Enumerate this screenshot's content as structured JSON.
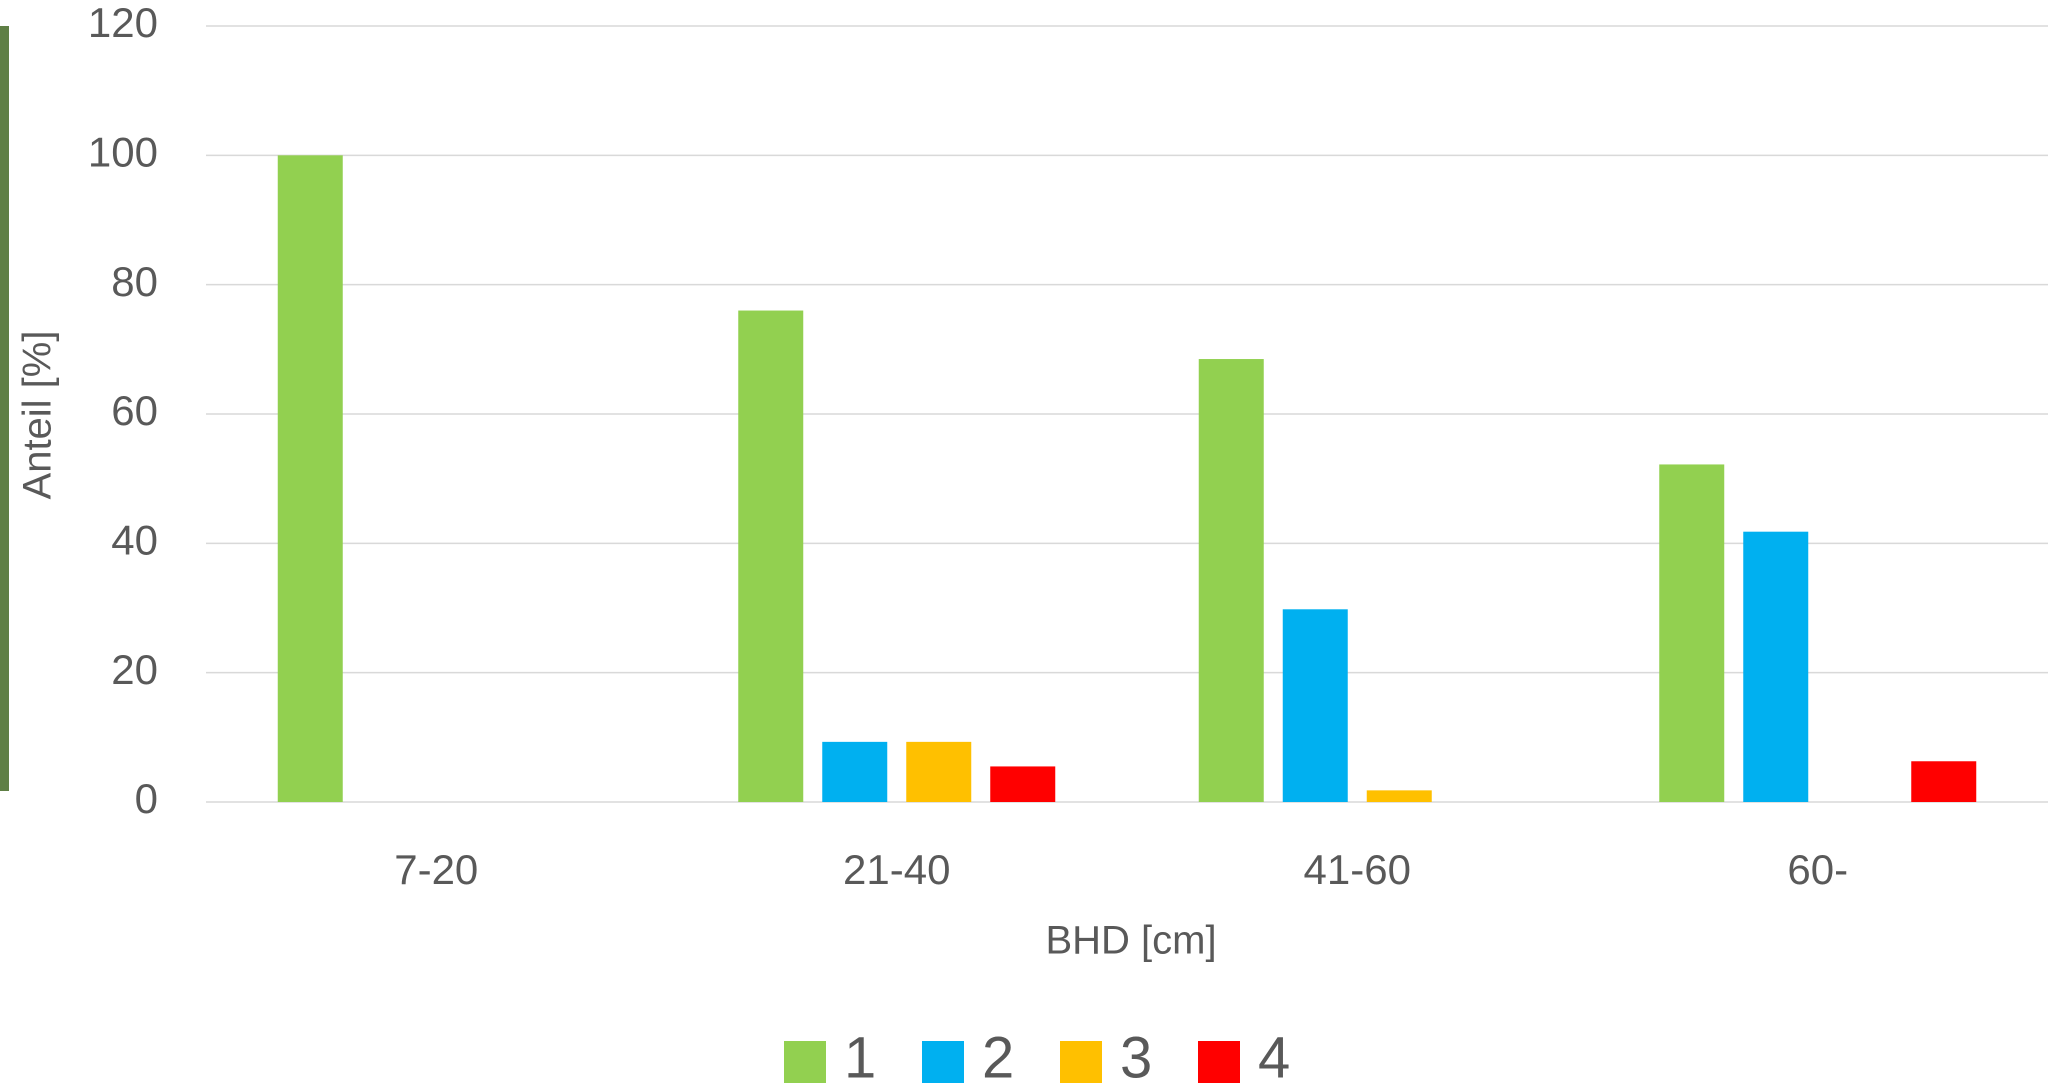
{
  "chart_data": {
    "type": "bar",
    "x_label": "BHD [cm]",
    "y_label": "Anteil [%]",
    "categories": [
      "7-20",
      "21-40",
      "41-60",
      "60-"
    ],
    "series": [
      {
        "name": "1",
        "color": "#92d050",
        "values": [
          100,
          76,
          68.5,
          52.2
        ]
      },
      {
        "name": "2",
        "color": "#00b0f0",
        "values": [
          0,
          9.3,
          29.8,
          41.8
        ]
      },
      {
        "name": "3",
        "color": "#ffc000",
        "values": [
          0,
          9.3,
          1.8,
          0
        ]
      },
      {
        "name": "4",
        "color": "#ff0000",
        "values": [
          0,
          5.5,
          0,
          6.3
        ]
      }
    ],
    "ylim": [
      0,
      120
    ],
    "yticks": [
      0,
      20,
      40,
      60,
      80,
      100,
      120
    ],
    "grid": true,
    "legend": "bottom"
  }
}
